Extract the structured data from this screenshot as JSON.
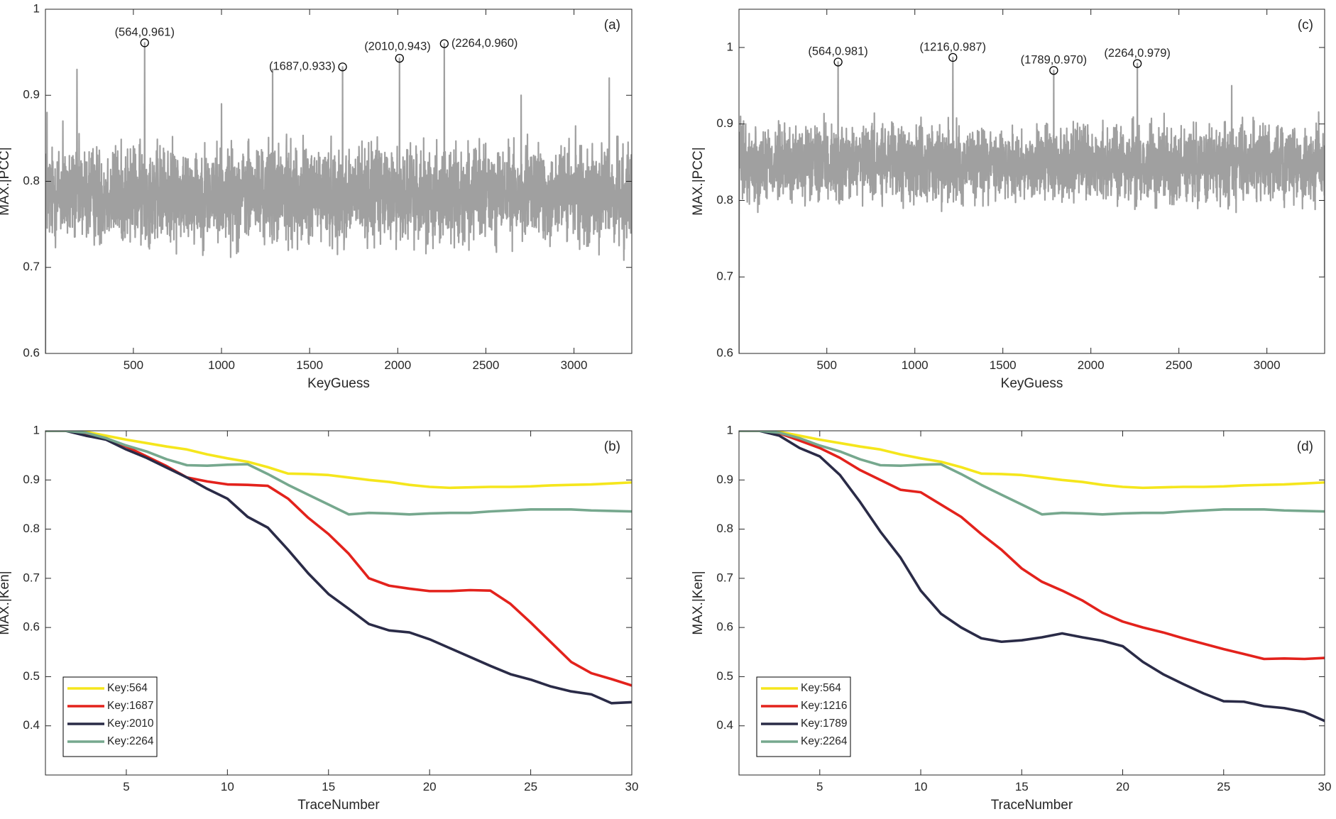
{
  "chart_data": [
    {
      "panel": "a",
      "type": "line",
      "panel_label": "(a)",
      "xlabel": "KeyGuess",
      "ylabel": "MAX.|PCC|",
      "xlim": [
        1,
        3328
      ],
      "ylim": [
        0.6,
        1.0
      ],
      "xticks": [
        500,
        1000,
        1500,
        2000,
        2500,
        3000
      ],
      "yticks": [
        0.6,
        0.7,
        0.8,
        0.9,
        1.0
      ],
      "ytick_labels": [
        "0.6",
        "0.7",
        "0.8",
        "0.9",
        "1"
      ],
      "noise": {
        "mean": 0.785,
        "spread": 0.082,
        "min": 0.6,
        "count": 3328,
        "color": "#a0a0a0"
      },
      "series": [
        {
          "x": [
            1,
            10,
            100,
            180,
            564,
            1000,
            1290,
            1687,
            2010,
            2264,
            2700,
            3200,
            3328
          ],
          "values": [
            0.6,
            0.88,
            0.87,
            0.93,
            0.961,
            0.89,
            0.93,
            0.933,
            0.943,
            0.96,
            0.9,
            0.92,
            0.77
          ]
        }
      ],
      "annotations": [
        {
          "x": 564,
          "y": 0.961,
          "text": "(564,0.961)",
          "anchor": "middle",
          "dx": 0,
          "dy": -14
        },
        {
          "x": 1687,
          "y": 0.933,
          "text": "(1687,0.933)",
          "anchor": "end",
          "dx": -10,
          "dy": 0
        },
        {
          "x": 2010,
          "y": 0.943,
          "text": "(2010,0.943)",
          "anchor": "end",
          "dx": 44,
          "dy": -16
        },
        {
          "x": 2264,
          "y": 0.96,
          "text": "(2264,0.960)",
          "anchor": "start",
          "dx": 10,
          "dy": 0
        }
      ]
    },
    {
      "panel": "c",
      "type": "line",
      "panel_label": "(c)",
      "xlabel": "KeyGuess",
      "ylabel": "MAX.|PCC|",
      "xlim": [
        1,
        3328
      ],
      "ylim": [
        0.6,
        1.05
      ],
      "xticks": [
        500,
        1000,
        1500,
        2000,
        2500,
        3000
      ],
      "yticks": [
        0.6,
        0.7,
        0.8,
        0.9,
        1.0
      ],
      "ytick_labels": [
        "0.6",
        "0.7",
        "0.8",
        "0.9",
        "1"
      ],
      "noise": {
        "mean": 0.848,
        "spread": 0.072,
        "min": 0.6,
        "count": 3328,
        "color": "#a0a0a0"
      },
      "series": [
        {
          "x": [
            1,
            10,
            564,
            1216,
            1789,
            2264,
            2800,
            3328
          ],
          "values": [
            0.6,
            0.91,
            0.981,
            0.987,
            0.97,
            0.979,
            0.95,
            0.7
          ]
        }
      ],
      "annotations": [
        {
          "x": 564,
          "y": 0.981,
          "text": "(564,0.981)",
          "anchor": "middle",
          "dx": 0,
          "dy": -14
        },
        {
          "x": 1216,
          "y": 0.987,
          "text": "(1216,0.987)",
          "anchor": "middle",
          "dx": 0,
          "dy": -14
        },
        {
          "x": 1789,
          "y": 0.97,
          "text": "(1789,0.970)",
          "anchor": "middle",
          "dx": 0,
          "dy": -14
        },
        {
          "x": 2264,
          "y": 0.979,
          "text": "(2264,0.979)",
          "anchor": "middle",
          "dx": 0,
          "dy": -14
        }
      ]
    },
    {
      "panel": "b",
      "type": "line",
      "panel_label": "(b)",
      "xlabel": "TraceNumber",
      "ylabel": "MAX.|Ken|",
      "xlim": [
        1,
        30
      ],
      "ylim": [
        0.3,
        1.0
      ],
      "xticks": [
        5,
        10,
        15,
        20,
        25,
        30
      ],
      "yticks": [
        0.4,
        0.5,
        0.6,
        0.7,
        0.8,
        0.9,
        1.0
      ],
      "ytick_labels": [
        "0.4",
        "0.5",
        "0.6",
        "0.7",
        "0.8",
        "0.9",
        "1"
      ],
      "legend": "bottom-left",
      "x": [
        1,
        2,
        3,
        4,
        5,
        6,
        7,
        8,
        9,
        10,
        11,
        12,
        13,
        14,
        15,
        16,
        17,
        18,
        19,
        20,
        21,
        22,
        23,
        24,
        25,
        26,
        27,
        28,
        29,
        30
      ],
      "series": [
        {
          "name": "Key:564",
          "color": "#f5e61c",
          "values": [
            1.0,
            1.0,
            0.998,
            0.99,
            0.982,
            0.975,
            0.968,
            0.962,
            0.952,
            0.944,
            0.937,
            0.926,
            0.913,
            0.912,
            0.91,
            0.905,
            0.9,
            0.896,
            0.89,
            0.886,
            0.884,
            0.885,
            0.886,
            0.886,
            0.887,
            0.889,
            0.89,
            0.891,
            0.893,
            0.895
          ]
        },
        {
          "name": "Key:1687",
          "color": "#e3221c",
          "values": [
            1.0,
            1.0,
            0.993,
            0.985,
            0.968,
            0.948,
            0.928,
            0.905,
            0.897,
            0.891,
            0.89,
            0.888,
            0.862,
            0.823,
            0.79,
            0.75,
            0.7,
            0.685,
            0.679,
            0.674,
            0.674,
            0.676,
            0.675,
            0.648,
            0.61,
            0.57,
            0.53,
            0.507,
            0.495,
            0.482
          ]
        },
        {
          "name": "Key:2010",
          "color": "#2a2b47",
          "values": [
            1.0,
            1.0,
            0.99,
            0.982,
            0.962,
            0.945,
            0.925,
            0.905,
            0.882,
            0.862,
            0.825,
            0.803,
            0.758,
            0.71,
            0.668,
            0.638,
            0.607,
            0.594,
            0.59,
            0.576,
            0.558,
            0.54,
            0.522,
            0.505,
            0.494,
            0.48,
            0.47,
            0.464,
            0.446,
            0.448
          ]
        },
        {
          "name": "Key:2264",
          "color": "#76a88e",
          "values": [
            1.0,
            1.0,
            0.996,
            0.985,
            0.97,
            0.958,
            0.942,
            0.93,
            0.929,
            0.931,
            0.932,
            0.912,
            0.89,
            0.87,
            0.85,
            0.83,
            0.833,
            0.832,
            0.83,
            0.832,
            0.833,
            0.833,
            0.836,
            0.838,
            0.84,
            0.84,
            0.84,
            0.838,
            0.837,
            0.836
          ]
        }
      ]
    },
    {
      "panel": "d",
      "type": "line",
      "panel_label": "(d)",
      "xlabel": "TraceNumber",
      "ylabel": "MAX.|Ken|",
      "xlim": [
        1,
        30
      ],
      "ylim": [
        0.3,
        1.0
      ],
      "xticks": [
        5,
        10,
        15,
        20,
        25,
        30
      ],
      "yticks": [
        0.4,
        0.5,
        0.6,
        0.7,
        0.8,
        0.9,
        1.0
      ],
      "ytick_labels": [
        "0.4",
        "0.5",
        "0.6",
        "0.7",
        "0.8",
        "0.9",
        "1"
      ],
      "legend": "bottom-left",
      "x": [
        1,
        2,
        3,
        4,
        5,
        6,
        7,
        8,
        9,
        10,
        11,
        12,
        13,
        14,
        15,
        16,
        17,
        18,
        19,
        20,
        21,
        22,
        23,
        24,
        25,
        26,
        27,
        28,
        29,
        30
      ],
      "series": [
        {
          "name": "Key:564",
          "color": "#f5e61c",
          "values": [
            1.0,
            1.0,
            0.998,
            0.99,
            0.982,
            0.975,
            0.968,
            0.962,
            0.952,
            0.944,
            0.937,
            0.926,
            0.913,
            0.912,
            0.91,
            0.905,
            0.9,
            0.896,
            0.89,
            0.886,
            0.884,
            0.885,
            0.886,
            0.886,
            0.887,
            0.889,
            0.89,
            0.891,
            0.893,
            0.895
          ]
        },
        {
          "name": "Key:1216",
          "color": "#e3221c",
          "values": [
            1.0,
            1.0,
            0.995,
            0.98,
            0.965,
            0.945,
            0.92,
            0.9,
            0.88,
            0.875,
            0.85,
            0.825,
            0.79,
            0.758,
            0.72,
            0.693,
            0.675,
            0.655,
            0.63,
            0.612,
            0.6,
            0.59,
            0.578,
            0.567,
            0.556,
            0.546,
            0.536,
            0.537,
            0.536,
            0.538
          ]
        },
        {
          "name": "Key:1789",
          "color": "#2a2b47",
          "values": [
            1.0,
            1.0,
            0.99,
            0.965,
            0.948,
            0.91,
            0.855,
            0.795,
            0.742,
            0.675,
            0.628,
            0.6,
            0.578,
            0.571,
            0.574,
            0.58,
            0.588,
            0.58,
            0.573,
            0.562,
            0.53,
            0.505,
            0.485,
            0.466,
            0.45,
            0.449,
            0.44,
            0.436,
            0.428,
            0.41
          ]
        },
        {
          "name": "Key:2264",
          "color": "#76a88e",
          "values": [
            1.0,
            1.0,
            0.996,
            0.985,
            0.97,
            0.958,
            0.942,
            0.93,
            0.929,
            0.931,
            0.932,
            0.912,
            0.89,
            0.87,
            0.85,
            0.83,
            0.833,
            0.832,
            0.83,
            0.832,
            0.833,
            0.833,
            0.836,
            0.838,
            0.84,
            0.84,
            0.84,
            0.838,
            0.837,
            0.836
          ]
        }
      ]
    }
  ]
}
